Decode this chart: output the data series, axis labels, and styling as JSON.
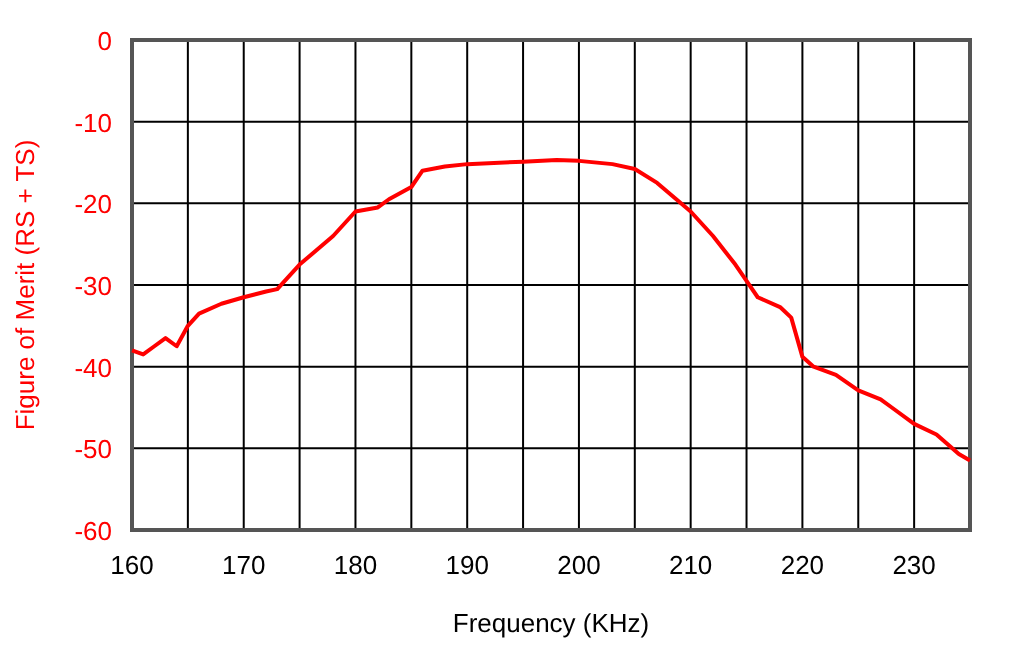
{
  "chart_data": {
    "type": "line",
    "xlabel": "Frequency (KHz)",
    "ylabel": "Figure of Merit (RS + TS)",
    "x": [
      160,
      161,
      162,
      163,
      164,
      165,
      166,
      168,
      170,
      172,
      173,
      175,
      178,
      180,
      182,
      183,
      185,
      186,
      188,
      190,
      195,
      198,
      200,
      203,
      205,
      207,
      210,
      212,
      214,
      215,
      216,
      218,
      219,
      220,
      221,
      223,
      225,
      227,
      228,
      230,
      232,
      234,
      235
    ],
    "series": [
      {
        "color": "#ff0000",
        "values": [
          -38,
          -38.5,
          -37.5,
          -36.5,
          -37.5,
          -35,
          -33.5,
          -32.3,
          -31.5,
          -30.8,
          -30.5,
          -27.5,
          -24,
          -21,
          -20.5,
          -19.5,
          -18,
          -16,
          -15.5,
          -15.2,
          -14.9,
          -14.7,
          -14.8,
          -15.2,
          -15.8,
          -17.5,
          -21,
          -24,
          -27.5,
          -29.5,
          -31.5,
          -32.7,
          -34,
          -38.8,
          -40,
          -41,
          -42.9,
          -44,
          -45,
          -47,
          -48.3,
          -50.7,
          -51.5
        ]
      }
    ],
    "xlim": [
      160,
      235
    ],
    "xticks": [
      160,
      {
        "value": 165,
        "label": null
      },
      170,
      {
        "value": 175,
        "label": null
      },
      180,
      {
        "value": 185,
        "label": null
      },
      190,
      {
        "value": 195,
        "label": null
      },
      200,
      {
        "value": 205,
        "label": null
      },
      210,
      {
        "value": 215,
        "label": null
      },
      220,
      {
        "value": 225,
        "label": null
      },
      230,
      {
        "value": 235,
        "label": null
      }
    ],
    "ylim": [
      -60,
      0
    ],
    "yticks": [
      -60,
      -50,
      -40,
      -30,
      -20,
      -10,
      0
    ],
    "grid": true,
    "marker": "none",
    "line_style": "solid"
  }
}
